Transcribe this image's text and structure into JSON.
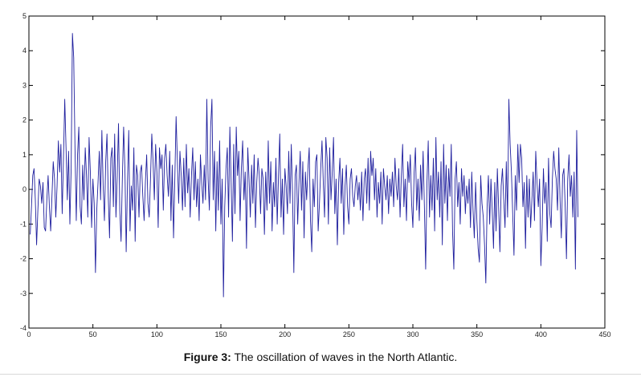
{
  "caption": {
    "prefix": "Figure 3:",
    "text": " The oscillation of waves in the North Atlantic."
  },
  "chart_data": {
    "type": "line",
    "title": "",
    "xlabel": "",
    "ylabel": "",
    "xlim": [
      0,
      450
    ],
    "ylim": [
      -4,
      5
    ],
    "x_ticks": [
      0,
      50,
      100,
      150,
      200,
      250,
      300,
      350,
      400,
      450
    ],
    "y_ticks": [
      -4,
      -3,
      -2,
      -1,
      0,
      1,
      2,
      3,
      4,
      5
    ],
    "grid": false,
    "line_color": "#1f1f9e",
    "series": [
      {
        "x_start": 1,
        "x_step": 1,
        "values": [
          -1.3,
          -0.5,
          0.4,
          0.6,
          -0.3,
          -1.6,
          -0.6,
          0.3,
          0.1,
          -0.4,
          0.2,
          -1.1,
          -1.2,
          -0.3,
          0.4,
          -0.5,
          -1.2,
          -0.2,
          0.8,
          0.3,
          -0.8,
          0.1,
          1.4,
          0.5,
          1.3,
          -0.7,
          0.9,
          2.6,
          1.2,
          -0.3,
          1.1,
          -1.0,
          0.6,
          4.5,
          3.8,
          1.2,
          -0.9,
          1.0,
          1.8,
          -0.5,
          -1.0,
          0.7,
          -0.3,
          1.2,
          0.4,
          -0.8,
          1.5,
          0.5,
          -1.1,
          0.3,
          -0.4,
          -2.4,
          -0.6,
          0.2,
          1.1,
          -0.3,
          1.7,
          0.1,
          -0.9,
          0.8,
          1.6,
          -0.2,
          -1.4,
          0.9,
          1.2,
          -0.5,
          1.6,
          -0.8,
          0.4,
          1.9,
          -0.6,
          -1.5,
          0.3,
          1.8,
          0.6,
          -1.8,
          0.2,
          1.7,
          -1.2,
          0.1,
          -0.6,
          1.2,
          -1.5,
          0.7,
          0.4,
          -0.8,
          0.5,
          0.7,
          -0.2,
          -0.9,
          0.2,
          1.0,
          -0.4,
          -0.8,
          0.3,
          1.6,
          0.8,
          -0.3,
          1.3,
          0.5,
          -1.1,
          1.2,
          0.6,
          1.0,
          -0.6,
          0.9,
          1.3,
          0.4,
          -0.2,
          1.1,
          -0.9,
          0.7,
          -1.4,
          0.3,
          2.1,
          0.8,
          -0.4,
          1.1,
          0.4,
          -0.6,
          0.9,
          -0.5,
          1.3,
          -0.1,
          0.6,
          -0.8,
          0.4,
          1.2,
          -0.3,
          0.8,
          -0.5,
          0.3,
          -0.9,
          1.0,
          0.2,
          -0.4,
          0.7,
          -0.3,
          2.6,
          0.3,
          -0.6,
          1.8,
          2.6,
          -0.3,
          1.1,
          -1.2,
          0.8,
          -0.6,
          1.4,
          -1.0,
          0.3,
          -3.1,
          -0.5,
          0.6,
          1.2,
          -0.8,
          1.8,
          0.2,
          -1.5,
          1.3,
          -0.7,
          1.8,
          0.4,
          1.1,
          -0.9,
          0.6,
          1.4,
          -0.3,
          0.5,
          -1.7,
          1.2,
          0.3,
          -0.8,
          0.7,
          -0.4,
          1.0,
          -1.1,
          0.2,
          0.9,
          0.4,
          -0.7,
          0.6,
          0.3,
          -1.3,
          0.5,
          -0.6,
          1.4,
          -0.4,
          0.8,
          -1.2,
          0.2,
          -0.5,
          0.9,
          -1.0,
          0.4,
          1.6,
          -0.8,
          0.3,
          -1.3,
          0.6,
          0.1,
          -0.7,
          1.1,
          -0.4,
          1.3,
          -0.2,
          -2.4,
          0.4,
          0.7,
          -1.0,
          0.2,
          1.1,
          -0.6,
          0.8,
          -1.4,
          0.5,
          -0.3,
          0.6,
          1.2,
          -0.9,
          -1.8,
          0.3,
          -0.5,
          0.8,
          1.0,
          -1.2,
          -0.4,
          0.6,
          1.4,
          0.2,
          -0.8,
          1.5,
          0.9,
          -1.0,
          1.2,
          -0.3,
          0.5,
          1.5,
          -0.7,
          0.3,
          -1.6,
          0.2,
          0.9,
          -0.4,
          0.6,
          -1.3,
          0.1,
          0.7,
          -0.5,
          -1.0,
          0.3,
          0.6,
          -0.2,
          -0.5,
          0.1,
          0.4,
          -0.3,
          0.2,
          -0.6,
          0.5,
          -0.9,
          0.3,
          0.6,
          -0.4,
          0.9,
          -0.6,
          1.1,
          0.4,
          0.9,
          -0.3,
          0.6,
          -0.8,
          0.2,
          -0.4,
          0.5,
          -1.0,
          0.6,
          0.1,
          -0.3,
          0.4,
          -0.7,
          0.3,
          -0.2,
          0.5,
          -0.5,
          0.9,
          0.1,
          -0.3,
          0.6,
          -0.8,
          0.4,
          1.3,
          -0.5,
          0.3,
          -0.9,
          0.8,
          0.2,
          1.0,
          -0.4,
          -1.1,
          0.5,
          1.2,
          -0.6,
          0.3,
          -0.9,
          0.7,
          -0.3,
          1.1,
          -0.5,
          -2.3,
          0.2,
          1.4,
          -0.8,
          0.4,
          -0.6,
          0.9,
          -1.2,
          1.5,
          -0.3,
          0.5,
          -0.8,
          0.8,
          -1.6,
          1.3,
          -0.4,
          0.7,
          -0.9,
          0.6,
          -0.2,
          1.3,
          -1.2,
          -2.3,
          0.3,
          0.8,
          -0.5,
          0.2,
          -1.0,
          0.6,
          -0.2,
          0.4,
          -0.7,
          0.1,
          -0.4,
          0.3,
          -1.1,
          0.5,
          -0.6,
          -1.4,
          0.2,
          -0.9,
          -1.7,
          -2.1,
          0.4,
          -0.4,
          -0.8,
          -1.6,
          -2.7,
          -0.5,
          0.4,
          -1.0,
          0.3,
          -0.6,
          -1.7,
          0.2,
          -1.2,
          0.6,
          -0.5,
          -1.8,
          0.1,
          0.6,
          -0.3,
          -1.1,
          0.8,
          -0.8,
          2.6,
          1.3,
          0.5,
          -0.7,
          -1.9,
          0.4,
          -0.6,
          1.3,
          0.2,
          1.3,
          0.9,
          -0.5,
          0.2,
          -1.7,
          0.4,
          -0.8,
          0.3,
          -1.1,
          -0.3,
          0.5,
          -0.9,
          1.1,
          0.2,
          -0.5,
          0.3,
          -2.2,
          -1.1,
          0.6,
          -0.4,
          0.2,
          -1.5,
          0.9,
          -0.7,
          -1.1,
          0.3,
          1.1,
          0.6,
          0.3,
          -0.6,
          1.2,
          -0.3,
          -1.4,
          0.4,
          0.6,
          -0.5,
          -2.0,
          0.3,
          1.0,
          -0.2,
          0.4,
          -0.8,
          0.5,
          -2.3,
          1.7,
          -0.8
        ]
      }
    ]
  }
}
